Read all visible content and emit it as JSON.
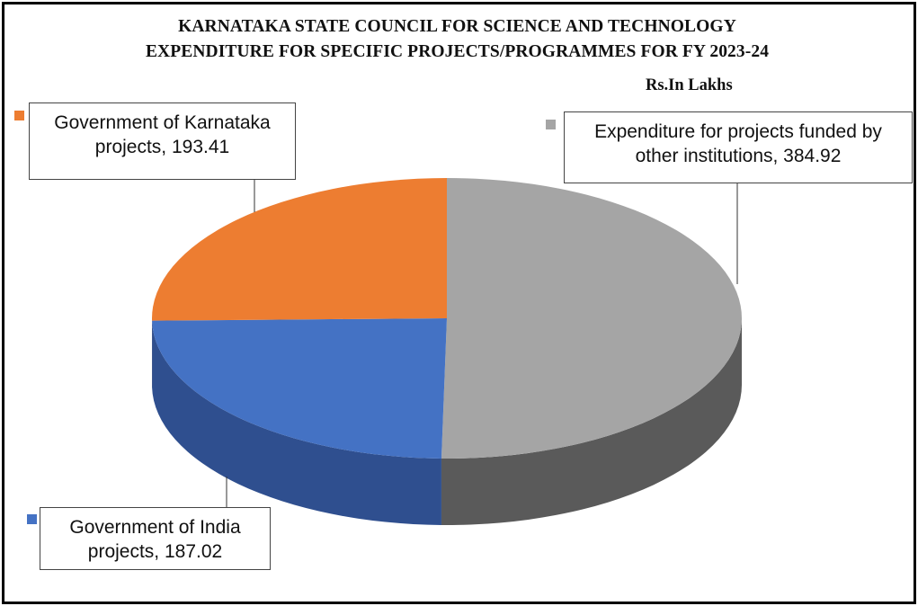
{
  "chart_data": {
    "type": "pie",
    "title": "KARNATAKA STATE COUNCIL FOR SCIENCE AND TECHNOLOGY",
    "subtitle": "EXPENDITURE FOR SPECIFIC PROJECTS/PROGRAMMES FOR FY 2023-24",
    "unit_label": "Rs.In Lakhs",
    "series": [
      {
        "name": "Expenditure for projects funded by other institutions",
        "label_lines": [
          "Expenditure for projects funded by",
          "other institutions, 384.92"
        ],
        "value": 384.92,
        "color": "#a5a5a5",
        "side_color": "#5a5a5a"
      },
      {
        "name": "Government of India projects",
        "label_lines": [
          "Government of India",
          "projects, 187.02"
        ],
        "value": 187.02,
        "color": "#4472c4",
        "side_color": "#2f4f8f"
      },
      {
        "name": "Government of Karnataka projects",
        "label_lines": [
          "Government of Karnataka",
          "projects, 193.41"
        ],
        "value": 193.41,
        "color": "#ed7d31",
        "side_color": "#b05a20"
      }
    ],
    "style": "3d-pie",
    "legend": "data-callouts"
  }
}
